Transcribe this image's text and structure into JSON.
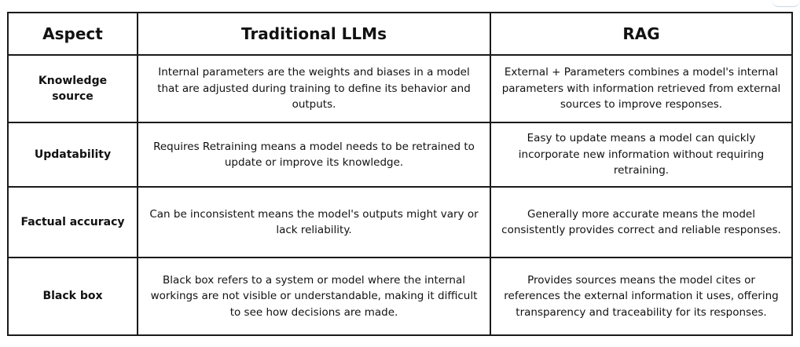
{
  "headers": {
    "aspect": "Aspect",
    "traditional": "Traditional LLMs",
    "rag": "RAG"
  },
  "rows": [
    {
      "aspect": "Knowledge source",
      "traditional": "Internal parameters are the weights and biases in a model that are adjusted during training to define its behavior and outputs.",
      "rag": "External + Parameters combines a model's internal parameters with information retrieved from external sources to improve responses."
    },
    {
      "aspect": "Updatability",
      "traditional": "Requires Retraining means a model needs to be retrained to update or improve its knowledge.",
      "rag": "Easy to update means a model can quickly incorporate new information without requiring retraining."
    },
    {
      "aspect": "Factual accuracy",
      "traditional": "Can be inconsistent means the model's outputs might vary or lack reliability.",
      "rag": "Generally more accurate means the model consistently provides correct and reliable responses."
    },
    {
      "aspect": "Black box",
      "traditional": "Black box refers to a system or model where the internal workings are not visible or understandable, making it difficult to see how decisions are made.",
      "rag": "Provides sources means the model cites or references the external information it uses, offering transparency and traceability for its responses."
    }
  ]
}
